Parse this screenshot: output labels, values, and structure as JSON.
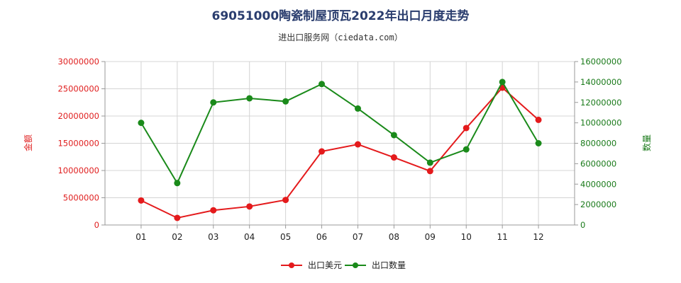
{
  "chart_data": {
    "type": "line",
    "title": "69051000陶瓷制屋顶瓦2022年出口月度走势",
    "subtitle": "进出口服务网（ciedata.com）",
    "categories": [
      "01",
      "02",
      "03",
      "04",
      "05",
      "06",
      "07",
      "08",
      "09",
      "10",
      "11",
      "12"
    ],
    "y_left": {
      "label": "金额",
      "ylim": [
        0,
        30000000
      ],
      "ticks": [
        "0",
        "5000000",
        "10000000",
        "15000000",
        "20000000",
        "25000000",
        "30000000"
      ]
    },
    "y_right": {
      "label": "数量",
      "ylim": [
        0,
        16000000
      ],
      "ticks": [
        "0",
        "2000000",
        "4000000",
        "6000000",
        "8000000",
        "10000000",
        "12000000",
        "14000000",
        "16000000"
      ]
    },
    "series": [
      {
        "name": "出口美元",
        "axis": "left",
        "color": "#e41a1c",
        "values": [
          4500000,
          1300000,
          2700000,
          3400000,
          4600000,
          13500000,
          14800000,
          12400000,
          9900000,
          17800000,
          25200000,
          19300000
        ]
      },
      {
        "name": "出口数量",
        "axis": "right",
        "color": "#1a8a1a",
        "values": [
          10000000,
          4100000,
          12000000,
          12400000,
          12100000,
          13800000,
          11400000,
          8800000,
          6100000,
          7400000,
          14000000,
          8000000
        ]
      }
    ],
    "grid": true,
    "legend": "bottom-center"
  }
}
